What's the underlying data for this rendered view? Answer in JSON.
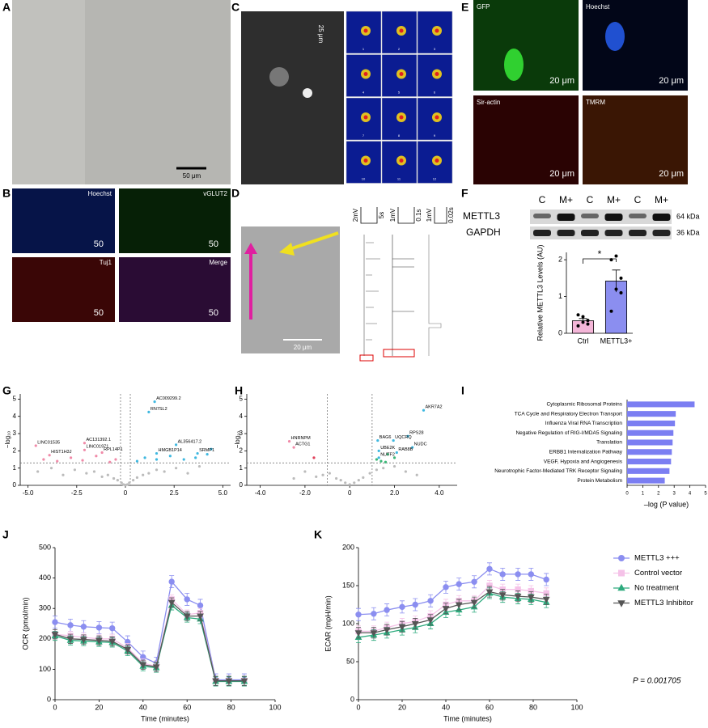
{
  "panel_labels": [
    "A",
    "B",
    "C",
    "D",
    "E",
    "F",
    "G",
    "H",
    "I",
    "J",
    "K"
  ],
  "micrographs": {
    "A": {
      "scale": "50 μm"
    },
    "B": {
      "labels": [
        "Hoechst",
        "vGLUT2",
        "Tuj1",
        "Merge"
      ],
      "scales": [
        "50",
        "50",
        "50",
        "50"
      ]
    },
    "C": {
      "scale": "25 μm",
      "frames": [
        "1",
        "2",
        "3",
        "4",
        "5",
        "6",
        "7",
        "8",
        "9",
        "10",
        "11",
        "12"
      ]
    },
    "D": {
      "scale": "20 μm",
      "trace_scales": [
        "2mV",
        "5s",
        "1mV",
        "0.1s",
        "1mV",
        "0.02s"
      ]
    },
    "E": {
      "labels": [
        "GFP",
        "Hoechst",
        "Sir-actin",
        "TMRM"
      ],
      "scale": "20 μm"
    }
  },
  "blot": {
    "lanes": [
      "C",
      "M+",
      "C",
      "M+",
      "C",
      "M+"
    ],
    "proteins": [
      "METTL3",
      "GAPDH"
    ],
    "sizes": [
      "64 kDa",
      "36 kDa"
    ]
  },
  "chart_data": [
    {
      "type": "bar",
      "ylabel": "Relative METTL3 Levels (AU)",
      "categories": [
        "Ctrl",
        "METTL3+"
      ],
      "values": [
        0.34,
        1.42
      ],
      "errors": [
        0.06,
        0.3
      ],
      "colors": [
        "#f4b6d8",
        "#8b8ef0"
      ],
      "points": [
        [
          0.2,
          0.3,
          0.35,
          0.5,
          0.45,
          0.25
        ],
        [
          0.6,
          1.2,
          1.1,
          2.0,
          2.1,
          1.5
        ]
      ],
      "ylim": [
        0,
        2.2
      ],
      "yticks": [
        0,
        1,
        2
      ],
      "annotation": "*"
    },
    {
      "type": "scatter",
      "ylabel": "−log₁₀",
      "xlim": [
        -5.4,
        5.4
      ],
      "xticks": [
        {
          "value": -5,
          "label": "-5.0"
        },
        -2.5,
        0,
        2.5,
        {
          "value": 5,
          "label": "5.0"
        }
      ],
      "ylim": [
        0,
        5.3
      ],
      "yticks": [
        0,
        1,
        2,
        3,
        4,
        5
      ],
      "thresholds": {
        "x": [
          -0.25,
          0.25
        ],
        "y": 1.3
      },
      "series": [
        {
          "color": "#bbbbbb",
          "x": [
            -4.5,
            -3.8,
            -3.2,
            -2.6,
            -2.0,
            -1.6,
            -1.2,
            -0.9,
            -0.6,
            -0.4,
            -0.2,
            -0.1,
            0,
            0.1,
            0.2,
            0.4,
            0.6,
            0.9,
            1.2,
            1.6,
            2.0,
            2.6,
            3.2,
            3.8
          ],
          "y": [
            0.8,
            1.0,
            0.6,
            0.9,
            0.7,
            0.8,
            0.5,
            0.6,
            0.4,
            0.3,
            0.15,
            0.05,
            0.02,
            0.05,
            0.15,
            0.3,
            0.45,
            0.6,
            0.7,
            0.9,
            0.8,
            1.0,
            0.7,
            1.1
          ]
        },
        {
          "color": "#f08aa8",
          "x": [
            -4.2,
            -3.5,
            -2.8,
            -2.2,
            -1.5,
            -0.8,
            -0.5
          ],
          "y": [
            1.5,
            1.4,
            1.6,
            1.45,
            1.7,
            1.35,
            1.5
          ]
        },
        {
          "color": "#3fb8e0",
          "x": [
            0.6,
            1.0,
            1.6,
            2.3,
            3.0,
            3.6,
            4.2,
            4.4
          ],
          "y": [
            1.4,
            1.6,
            1.5,
            1.7,
            1.5,
            1.6,
            1.8,
            2.1
          ]
        }
      ],
      "genes": [
        {
          "label": "AC009299.2",
          "x": 1.5,
          "y": 4.85
        },
        {
          "label": "RN7SL2",
          "x": 1.2,
          "y": 4.25
        },
        {
          "label": "LINC01535",
          "x": -4.6,
          "y": 2.3
        },
        {
          "label": "HIST1H3J",
          "x": -3.9,
          "y": 1.75
        },
        {
          "label": "AC131392.1",
          "x": -2.1,
          "y": 2.45
        },
        {
          "label": "LINC01971",
          "x": -2.1,
          "y": 2.05
        },
        {
          "label": "RPL14P1",
          "x": -1.2,
          "y": 1.9
        },
        {
          "label": "AL356417.2",
          "x": 2.6,
          "y": 2.35
        },
        {
          "label": "HMGB1P14",
          "x": 1.6,
          "y": 1.85
        },
        {
          "label": "SRMP1",
          "x": 3.7,
          "y": 1.85
        }
      ]
    },
    {
      "type": "scatter",
      "ylabel": "−log₁₀",
      "xlim": [
        -4.6,
        4.8
      ],
      "xticks": [
        {
          "value": -4,
          "label": "-4.0"
        },
        {
          "value": -2,
          "label": "-2.0"
        },
        0,
        {
          "value": 2,
          "label": "2.0"
        },
        {
          "value": 4,
          "label": "4.0"
        }
      ],
      "ylim": [
        0,
        5.3
      ],
      "yticks": [
        0,
        1,
        2,
        3,
        4,
        5
      ],
      "thresholds": {
        "x": [
          -1,
          1
        ],
        "y": 1.3
      },
      "series": [
        {
          "color": "#bbbbbb",
          "x": [
            -2.5,
            -2,
            -1.5,
            -1.2,
            -0.9,
            -0.6,
            -0.4,
            -0.2,
            0,
            0.2,
            0.4,
            0.6,
            0.9,
            1.2,
            1.5,
            2,
            2.5,
            3
          ],
          "y": [
            0.4,
            0.8,
            0.5,
            0.6,
            0.7,
            0.4,
            0.3,
            0.15,
            0.05,
            0.15,
            0.3,
            0.45,
            0.7,
            0.9,
            1.0,
            1.1,
            0.8,
            0.6
          ]
        },
        {
          "color": "#e0405a",
          "x": [
            -1.6
          ],
          "y": [
            1.6
          ]
        },
        {
          "color": "#3cb878",
          "x": [
            1.2,
            1.4,
            1.7,
            2.0,
            1.6
          ],
          "y": [
            1.5,
            1.4,
            1.8,
            1.6,
            1.35
          ]
        }
      ],
      "genes": [
        {
          "label": "AKR7A2",
          "x": 3.3,
          "y": 4.35
        },
        {
          "label": "RPS28",
          "x": 2.6,
          "y": 2.85
        },
        {
          "label": "BAG6",
          "x": 1.25,
          "y": 2.6
        },
        {
          "label": "UQCRQ",
          "x": 1.95,
          "y": 2.6
        },
        {
          "label": "NUDC",
          "x": 2.8,
          "y": 2.2
        },
        {
          "label": "UBE2K",
          "x": 1.3,
          "y": 2.0
        },
        {
          "label": "RAB8B",
          "x": 2.1,
          "y": 1.9
        },
        {
          "label": "NUTF2",
          "x": 1.3,
          "y": 1.6
        },
        {
          "label": "HNRNPM",
          "x": -2.7,
          "y": 2.55
        },
        {
          "label": "ACTG1",
          "x": -2.5,
          "y": 2.2
        }
      ]
    },
    {
      "type": "bar",
      "orientation": "horizontal",
      "categories": [
        "Cytoplasmic Ribosomal Proteins",
        "TCA Cycle and Respiratory Electron Transport",
        "Influenza Viral RNA Transcription",
        "Negative Regulation of RIG-I/MDA5 Signaling",
        "Translation",
        "ERBB1 Internalization Pathway",
        "VEGF, Hypoxia and Angiogenesis",
        "Neurotrophic Factor-Mediated TRK Receptor Signaling",
        "Protein Metabolism"
      ],
      "values": [
        4.3,
        3.1,
        3.05,
        2.95,
        2.9,
        2.85,
        2.8,
        2.7,
        2.4
      ],
      "color": "#7b7ef2",
      "xlim": [
        0,
        5
      ],
      "xticks": [
        0,
        1,
        2,
        3,
        4,
        5
      ],
      "xlabel": "–log (P value)"
    },
    {
      "type": "line",
      "ylabel": "OCR (pmol/min)",
      "xlabel": "Time (minutes)",
      "x": [
        0,
        7,
        13,
        20,
        26,
        33,
        40,
        46,
        53,
        60,
        66,
        73,
        79,
        86
      ],
      "xlim": [
        0,
        100
      ],
      "xticks": [
        0,
        20,
        40,
        60,
        80,
        100
      ],
      "ylim": [
        0,
        500
      ],
      "yticks": [
        0,
        100,
        200,
        300,
        400,
        500
      ],
      "series": [
        {
          "color": "#8b8ef0",
          "marker": "circle",
          "error": 20,
          "values": [
            255,
            245,
            240,
            237,
            235,
            190,
            140,
            120,
            388,
            330,
            310,
            65,
            65,
            65
          ]
        },
        {
          "color": "#f5c2e8",
          "marker": "square",
          "error": 15,
          "values": [
            215,
            210,
            205,
            200,
            200,
            170,
            120,
            110,
            330,
            280,
            285,
            62,
            62,
            62
          ]
        },
        {
          "color": "#2daa7d",
          "marker": "triangle",
          "error": 15,
          "values": [
            210,
            195,
            193,
            190,
            188,
            160,
            110,
            105,
            310,
            270,
            265,
            60,
            60,
            60
          ]
        },
        {
          "color": "#555555",
          "marker": "triangle-down",
          "error": 15,
          "values": [
            215,
            200,
            198,
            195,
            192,
            165,
            115,
            108,
            320,
            275,
            275,
            62,
            62,
            62
          ]
        }
      ]
    },
    {
      "type": "line",
      "ylabel": "ECAR (mpH/min)",
      "xlabel": "Time (minutes)",
      "x": [
        0,
        7,
        13,
        20,
        26,
        33,
        40,
        46,
        53,
        60,
        66,
        73,
        79,
        86
      ],
      "xlim": [
        0,
        100
      ],
      "xticks": [
        0,
        20,
        40,
        60,
        80,
        100
      ],
      "ylim": [
        0,
        200
      ],
      "yticks": [
        0,
        50,
        100,
        150,
        200
      ],
      "legend": "right",
      "annotation": "P = 0.001705",
      "series": [
        {
          "name": "METTL3 +++",
          "color": "#8b8ef0",
          "marker": "circle",
          "error": 8,
          "values": [
            112,
            113,
            118,
            122,
            125,
            130,
            148,
            152,
            155,
            172,
            165,
            165,
            165,
            158
          ]
        },
        {
          "name": "Control vector",
          "color": "#f5c2e8",
          "marker": "square",
          "error": 7,
          "values": [
            90,
            90,
            95,
            100,
            103,
            110,
            125,
            130,
            130,
            150,
            145,
            145,
            143,
            140
          ]
        },
        {
          "name": "No treatment",
          "color": "#2daa7d",
          "marker": "triangle",
          "error": 7,
          "values": [
            82,
            85,
            88,
            92,
            95,
            100,
            115,
            118,
            122,
            140,
            135,
            133,
            132,
            128
          ]
        },
        {
          "name": "METTL3 Inhibitor",
          "color": "#555555",
          "marker": "triangle-down",
          "error": 7,
          "values": [
            88,
            88,
            92,
            96,
            100,
            105,
            120,
            125,
            128,
            142,
            138,
            136,
            135,
            132
          ]
        }
      ]
    }
  ]
}
